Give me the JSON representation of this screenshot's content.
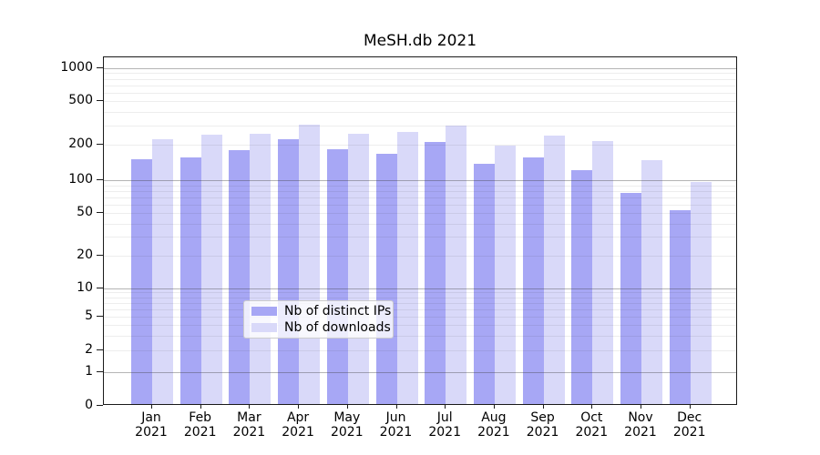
{
  "chart_data": {
    "type": "bar",
    "title": "MeSH.db 2021",
    "categories": [
      "Jan 2021",
      "Feb 2021",
      "Mar 2021",
      "Apr 2021",
      "May 2021",
      "Jun 2021",
      "Jul 2021",
      "Aug 2021",
      "Sep 2021",
      "Oct 2021",
      "Nov 2021",
      "Dec 2021"
    ],
    "series": [
      {
        "name": "Nb of distinct IPs",
        "color": "#a7a7f5",
        "values": [
          147,
          150,
          174,
          218,
          176,
          163,
          204,
          133,
          150,
          118,
          73,
          51
        ]
      },
      {
        "name": "Nb of downloads",
        "color": "#d9d9f9",
        "values": [
          217,
          237,
          242,
          293,
          245,
          252,
          291,
          190,
          235,
          209,
          142,
          93
        ]
      }
    ],
    "xlabel": "",
    "ylabel": "",
    "yscale": "symlog",
    "ylim": [
      0,
      1000
    ],
    "yticks": [
      0,
      1,
      2,
      5,
      10,
      20,
      50,
      100,
      200,
      500,
      1000
    ],
    "grid": true,
    "legend_position": "lower center"
  },
  "colors": {
    "bar_dark": "#a7a7f5",
    "bar_light": "#d9d9f9",
    "grid_major": "rgba(60,60,60,0.38)",
    "grid_minor": "rgba(60,60,60,0.09)",
    "axis": "#1a1a1a",
    "background": "#ffffff"
  }
}
